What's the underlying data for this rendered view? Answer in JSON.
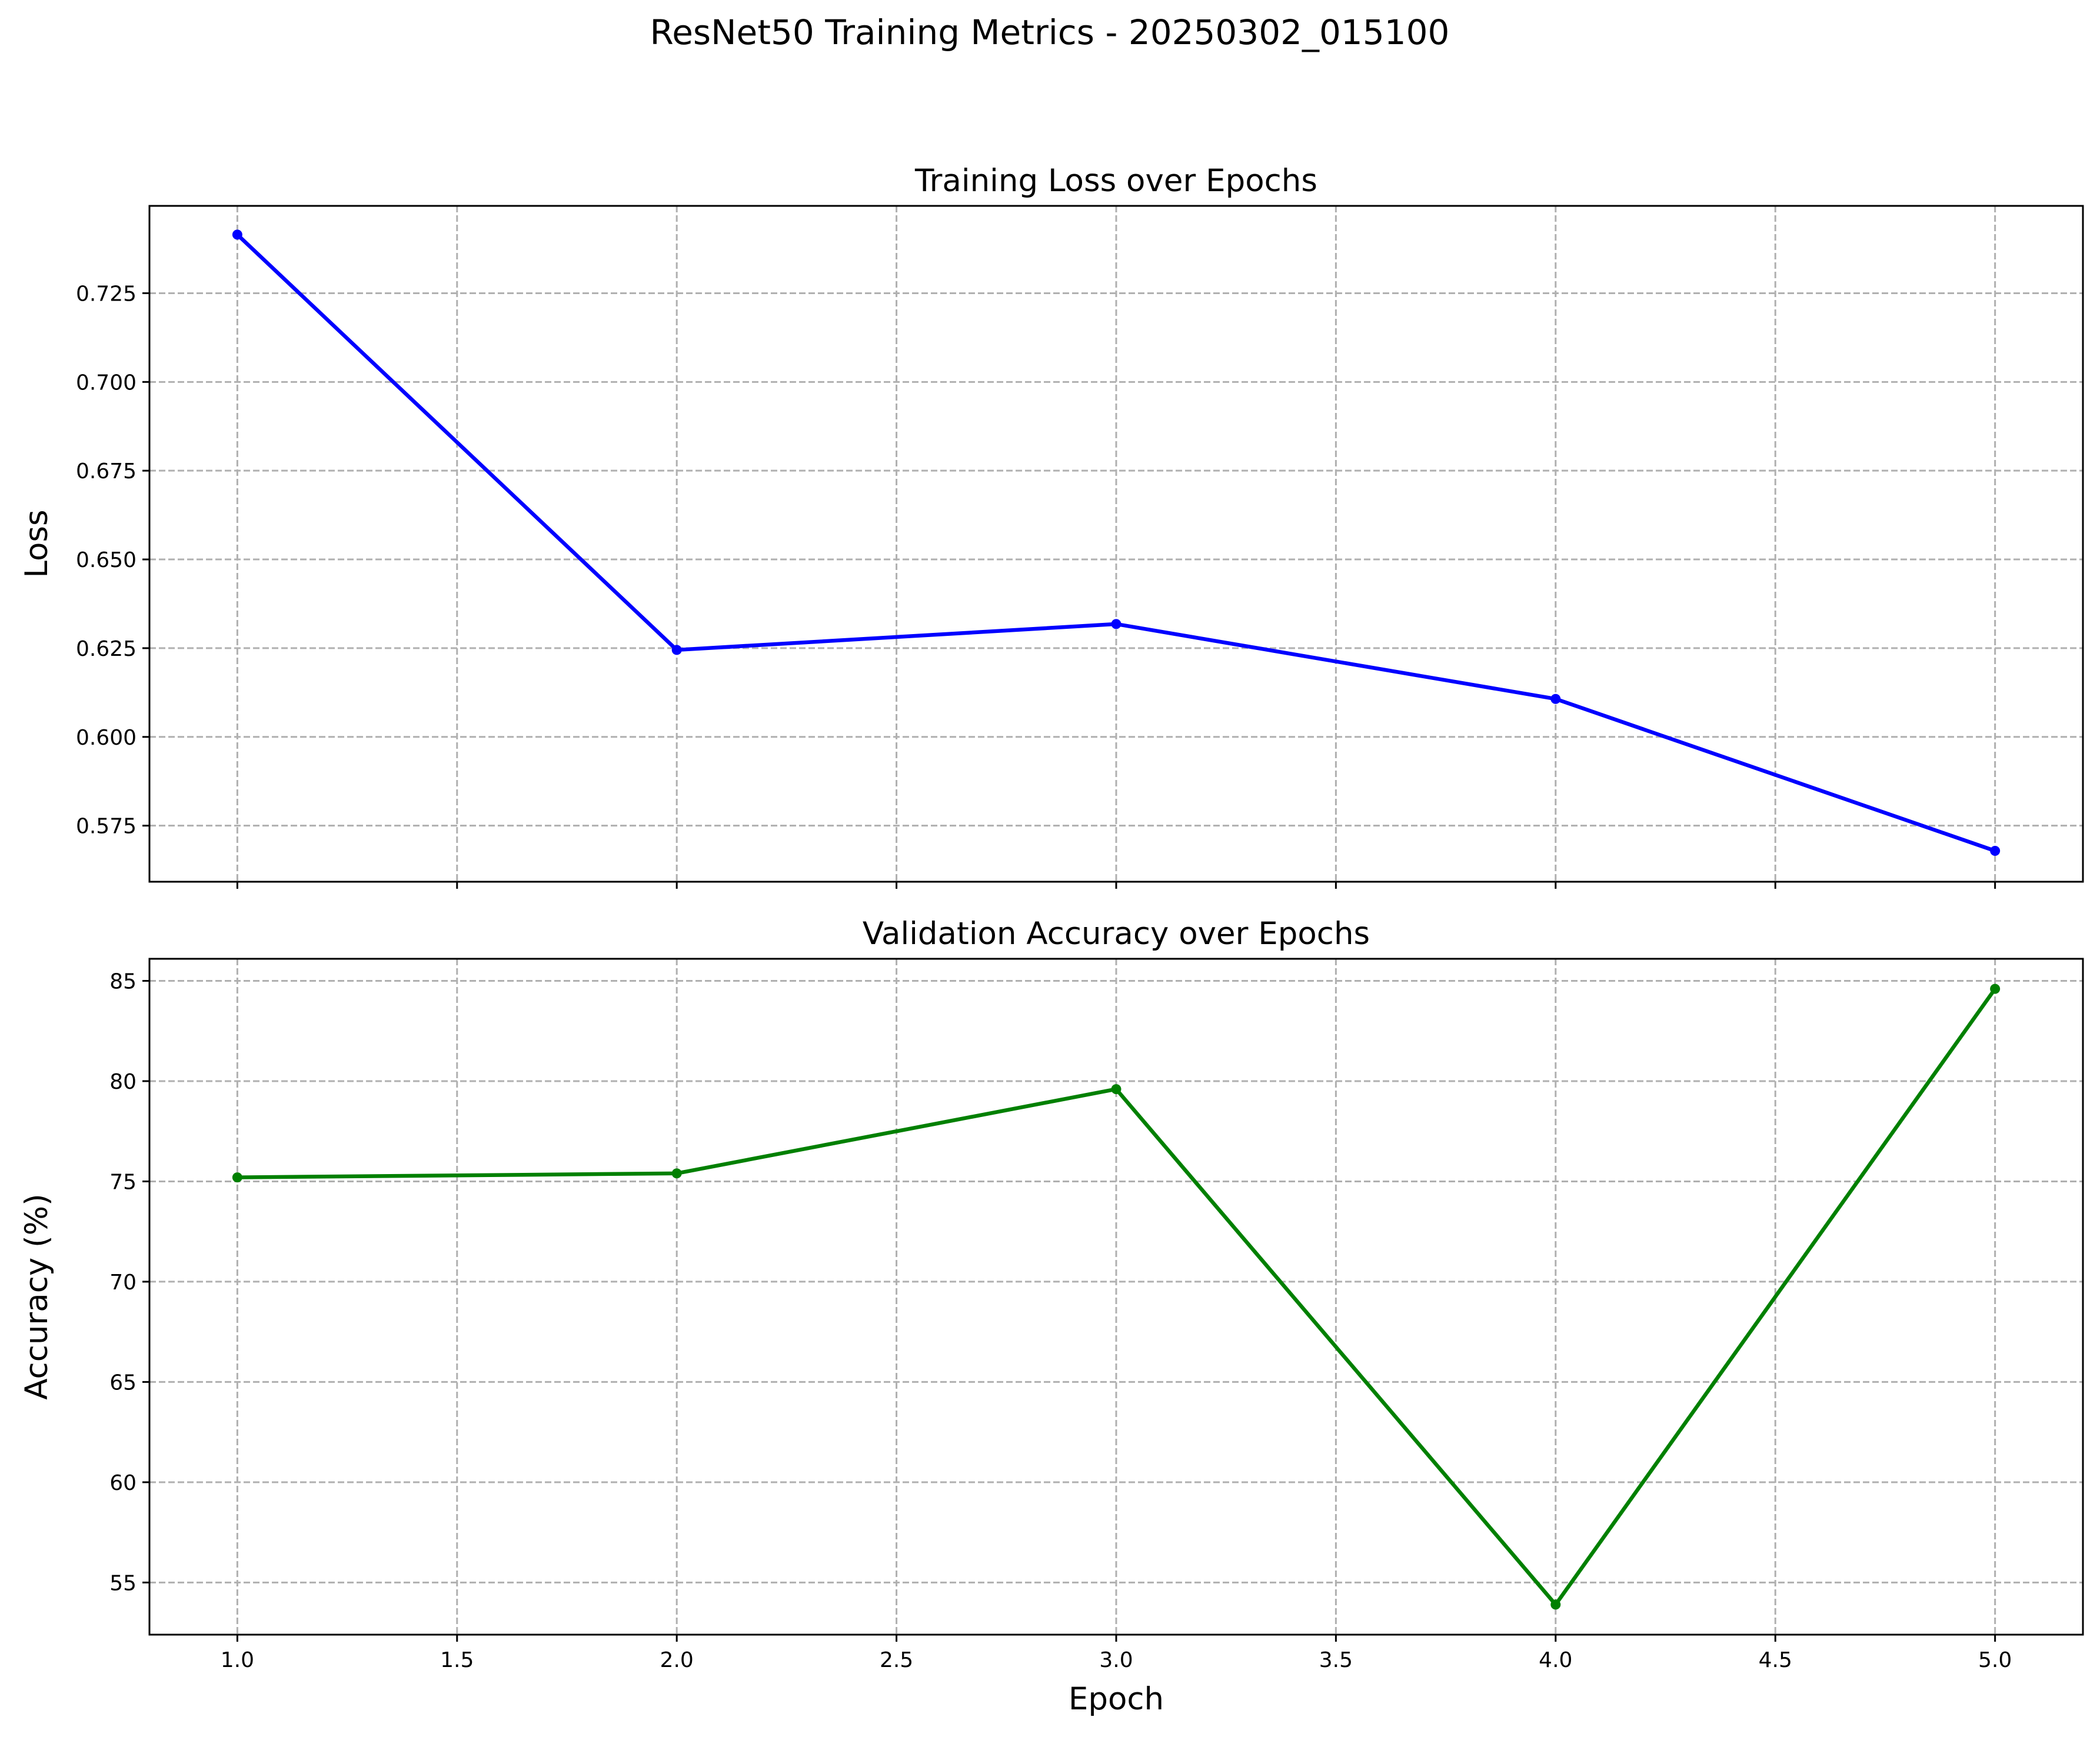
{
  "figure": {
    "suptitle": "ResNet50 Training Metrics - 20250302_015100"
  },
  "chart_data": [
    {
      "type": "line",
      "title": "Training Loss over Epochs",
      "xlabel": "",
      "ylabel": "Loss",
      "x": [
        1,
        2,
        3,
        4,
        5
      ],
      "series": [
        {
          "values": [
            0.7415,
            0.6245,
            0.6318,
            0.6107,
            0.5679
          ],
          "color": "#0000ff",
          "marker": "circle"
        }
      ],
      "xlim": [
        0.8,
        5.2
      ],
      "ylim": [
        0.5592,
        0.7496
      ],
      "xticks": [
        1.0,
        1.5,
        2.0,
        2.5,
        3.0,
        3.5,
        4.0,
        4.5,
        5.0
      ],
      "yticks": [
        0.575,
        0.6,
        0.625,
        0.65,
        0.675,
        0.7,
        0.725
      ],
      "ytick_labels": [
        "0.575",
        "0.600",
        "0.625",
        "0.650",
        "0.675",
        "0.700",
        "0.725"
      ],
      "xtick_labels_visible": false,
      "grid": true
    },
    {
      "type": "line",
      "title": "Validation Accuracy over Epochs",
      "xlabel": "Epoch",
      "ylabel": "Accuracy (%)",
      "x": [
        1,
        2,
        3,
        4,
        5
      ],
      "series": [
        {
          "values": [
            75.2,
            75.4,
            79.6,
            53.9,
            84.6
          ],
          "color": "#008000",
          "marker": "circle"
        }
      ],
      "xlim": [
        0.8,
        5.2
      ],
      "ylim": [
        52.4,
        86.1
      ],
      "xticks": [
        1.0,
        1.5,
        2.0,
        2.5,
        3.0,
        3.5,
        4.0,
        4.5,
        5.0
      ],
      "xtick_labels": [
        "1.0",
        "1.5",
        "2.0",
        "2.5",
        "3.0",
        "3.5",
        "4.0",
        "4.5",
        "5.0"
      ],
      "yticks": [
        55,
        60,
        65,
        70,
        75,
        80,
        85
      ],
      "ytick_labels": [
        "55",
        "60",
        "65",
        "70",
        "75",
        "80",
        "85"
      ],
      "xtick_labels_visible": true,
      "grid": true
    }
  ]
}
